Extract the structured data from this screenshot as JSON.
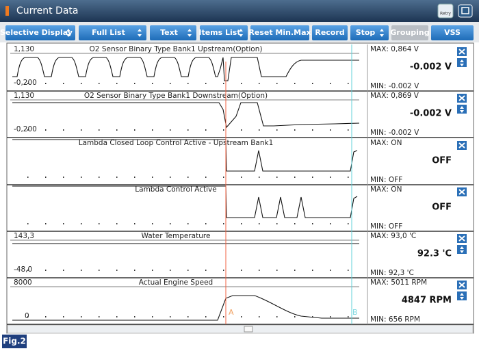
{
  "window": {
    "title": "Current Data",
    "retry": "Retry"
  },
  "toolbar": [
    {
      "label": "Selective Display",
      "dropdown": true
    },
    {
      "label": "Full List",
      "dropdown": true
    },
    {
      "label": "Text",
      "dropdown": true
    },
    {
      "label": "Items List",
      "dropdown": true
    },
    {
      "label": "Reset Min.Max",
      "dropdown": false
    },
    {
      "label": "Record",
      "dropdown": false
    },
    {
      "label": "Stop",
      "dropdown": true
    },
    {
      "label": "Grouping",
      "dropdown": false,
      "disabled": true
    },
    {
      "label": "VSS",
      "dropdown": false
    }
  ],
  "rows": [
    {
      "name": "O2 Sensor Binary Type Bank1 Upstream(Option)",
      "top": "1,130",
      "bottom": "-0,200",
      "max": "MAX: 0,864 V",
      "value": "-0.002 V",
      "min": "MIN: -0.002 V"
    },
    {
      "name": "O2 Sensor Binary Type Bank1 Downstream(Option)",
      "top": "1,130",
      "bottom": "-0,200",
      "max": "MAX: 0,869 V",
      "value": "-0.002 V",
      "min": "MIN: -0.002 V"
    },
    {
      "name": "Lambda Closed Loop Control Active - Upstream Bank1",
      "max": "MAX: ON",
      "value": "OFF",
      "min": "MIN: OFF"
    },
    {
      "name": "Lambda Control Active",
      "max": "MAX: ON",
      "value": "OFF",
      "min": "MIN: OFF"
    },
    {
      "name": "Water Temperature",
      "top": "143,3",
      "bottom": "-48,0",
      "max": "MAX:  93,0 'C",
      "value": "92.3 'C",
      "min": "MIN:  92,3 'C"
    },
    {
      "name": "Actual Engine Speed",
      "top": "8000",
      "bottom": "0",
      "max": "MAX:  5011 RPM",
      "value": "4847 RPM",
      "min": "MIN:   656 RPM"
    }
  ],
  "cursors": {
    "a": "A",
    "b": "B"
  },
  "figure": "Fig.2"
}
